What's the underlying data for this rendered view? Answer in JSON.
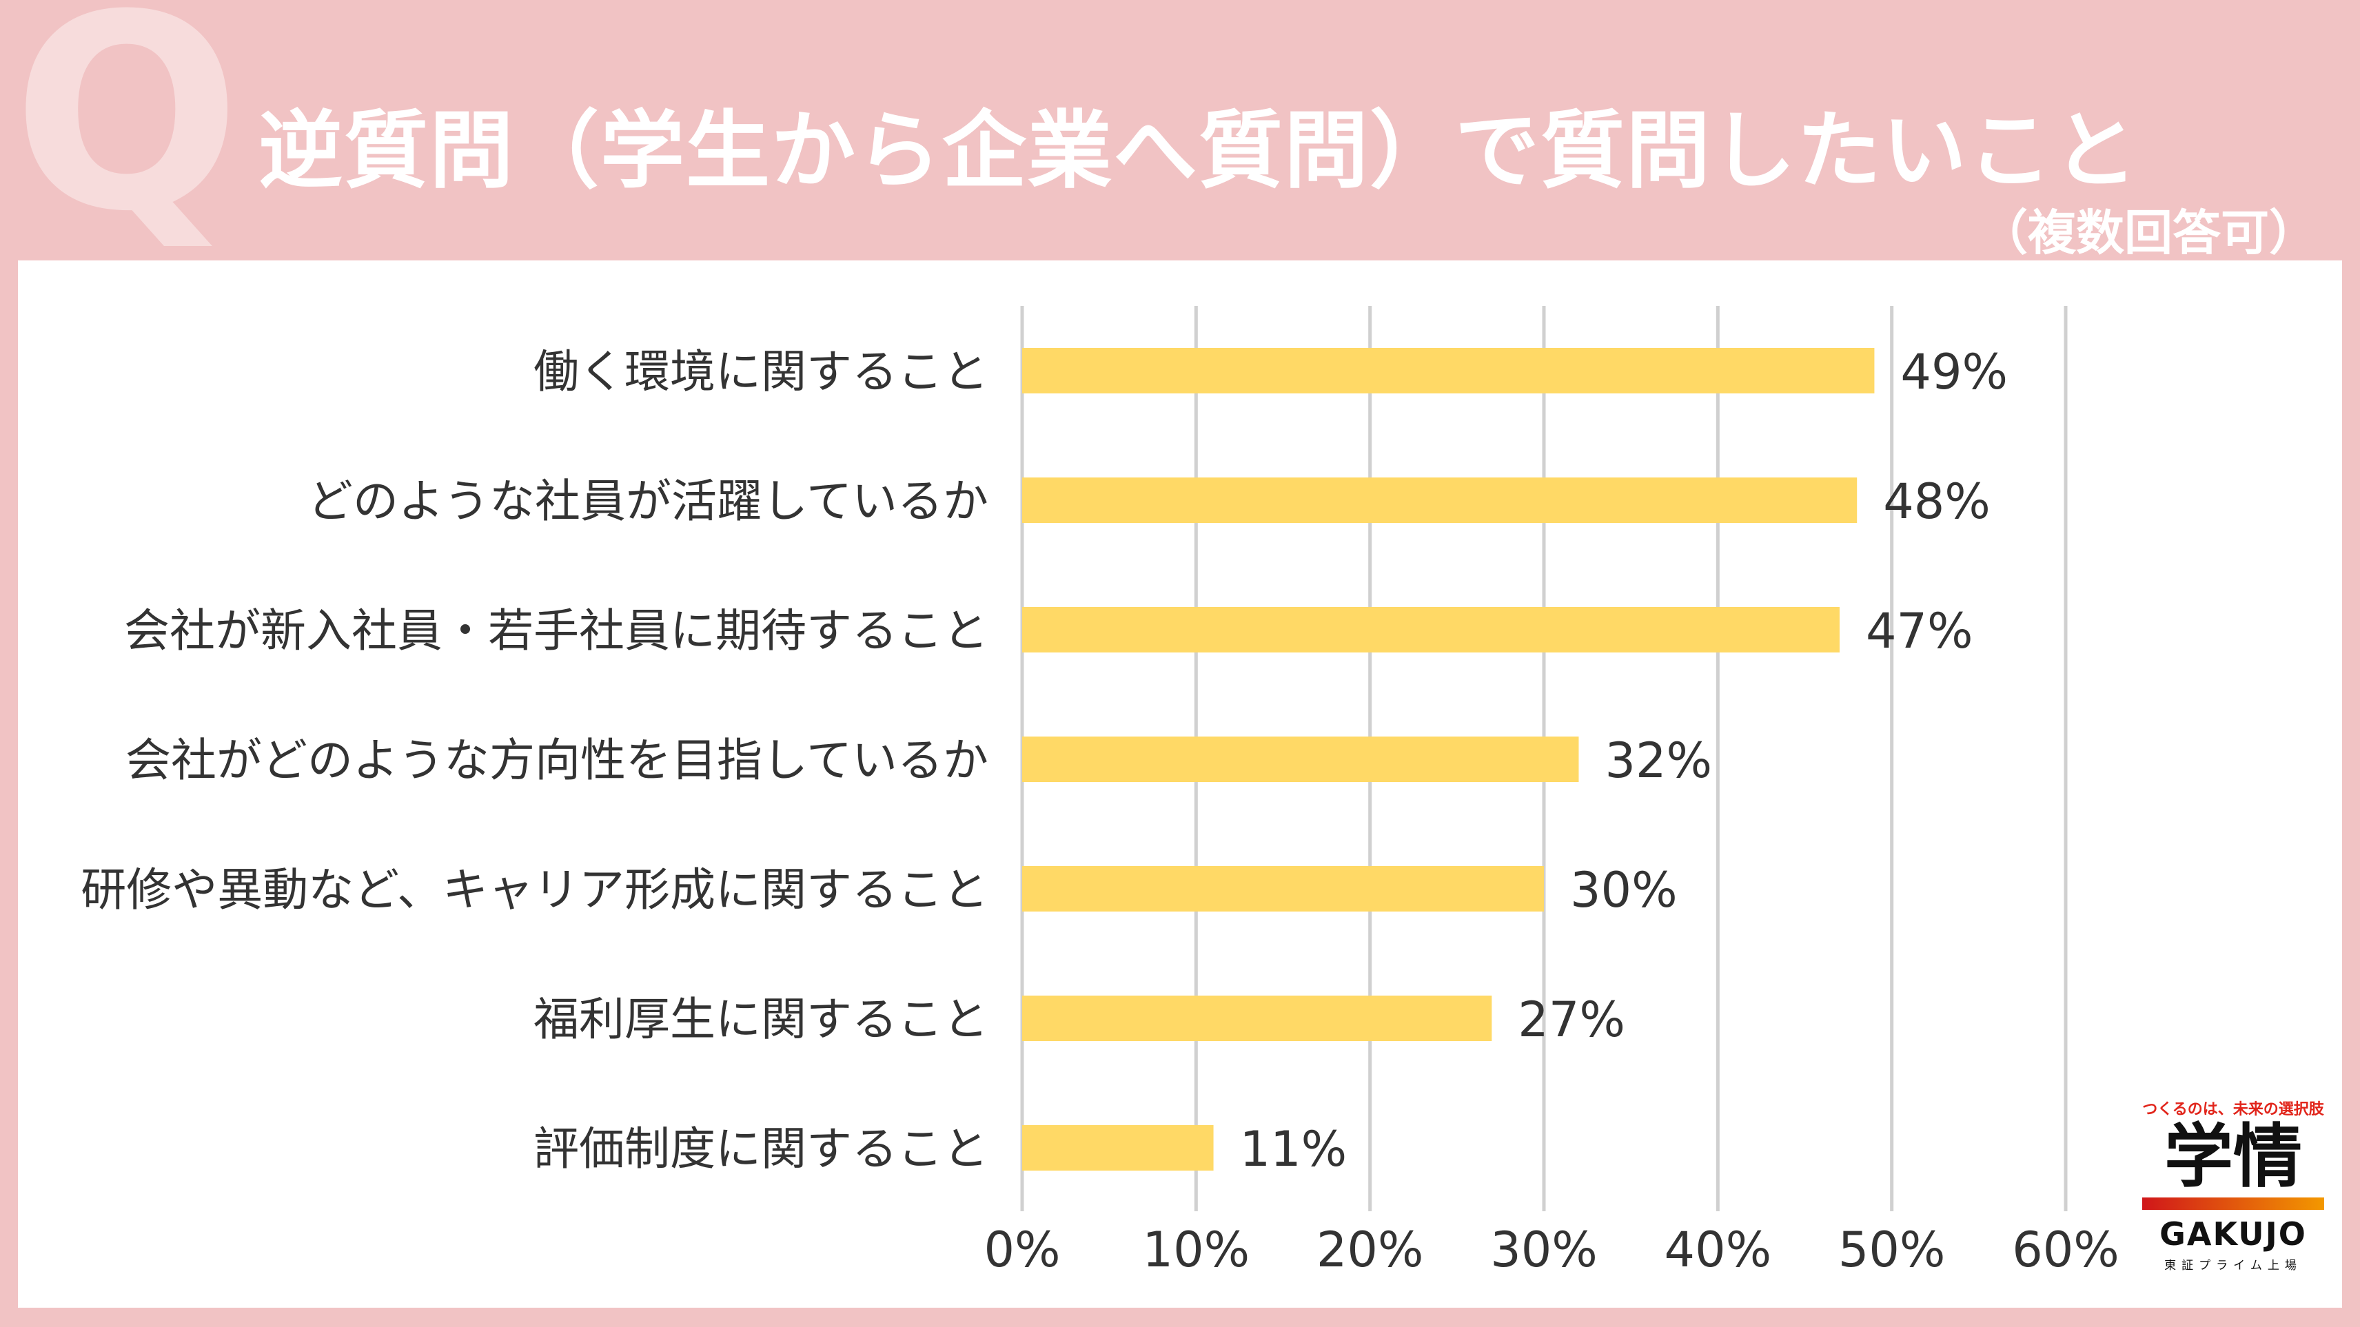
{
  "header": {
    "q_mark": "Q",
    "title": "逆質問（学生から企業へ質問）で質問したいこと",
    "subtitle": "（複数回答可）"
  },
  "colors": {
    "background": "#f1c3c4",
    "bar": "#ffd966",
    "grid": "#d0d0d0",
    "text": "#333333"
  },
  "chart_data": {
    "type": "bar",
    "orientation": "horizontal",
    "categories": [
      "働く環境に関すること",
      "どのような社員が活躍しているか",
      "会社が新入社員・若手社員に期待すること",
      "会社がどのような方向性を目指しているか",
      "研修や異動など、キャリア形成に関すること",
      "福利厚生に関すること",
      "評価制度に関すること"
    ],
    "values": [
      49,
      48,
      47,
      32,
      30,
      27,
      11
    ],
    "value_labels": [
      "49%",
      "48%",
      "47%",
      "32%",
      "30%",
      "27%",
      "11%"
    ],
    "xlim": [
      0,
      60
    ],
    "xticks": [
      0,
      10,
      20,
      30,
      40,
      50,
      60
    ],
    "xtick_labels": [
      "0%",
      "10%",
      "20%",
      "30%",
      "40%",
      "50%",
      "60%"
    ],
    "grid": true
  },
  "logo": {
    "tagline": "つくるのは、未来の選択肢",
    "brand_jp": "学情",
    "brand_en": "GAKUJO",
    "listing": "東証プライム上場"
  }
}
